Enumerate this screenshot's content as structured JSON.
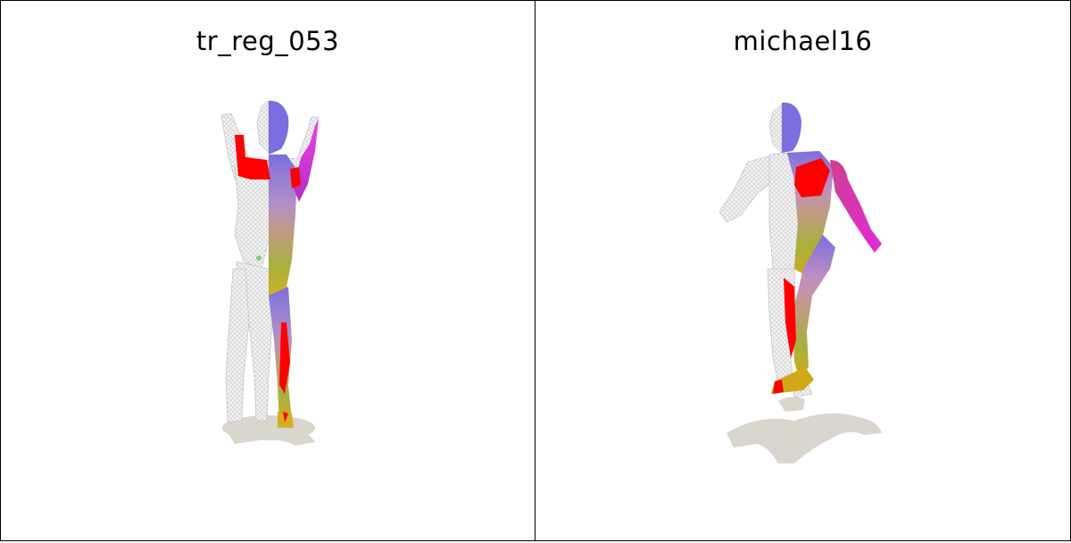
{
  "panels": [
    {
      "title": "tr_reg_053"
    },
    {
      "title": "michael16"
    }
  ],
  "colors": {
    "mesh_wire": "#e8e8e8",
    "error_red": "#ff0000",
    "head_blue": "#7b6fe0",
    "arm_magenta": "#e02ad8",
    "leg_yellow": "#b8c028",
    "torso_tan": "#c39a86",
    "shadow": "#d8d6cd"
  }
}
